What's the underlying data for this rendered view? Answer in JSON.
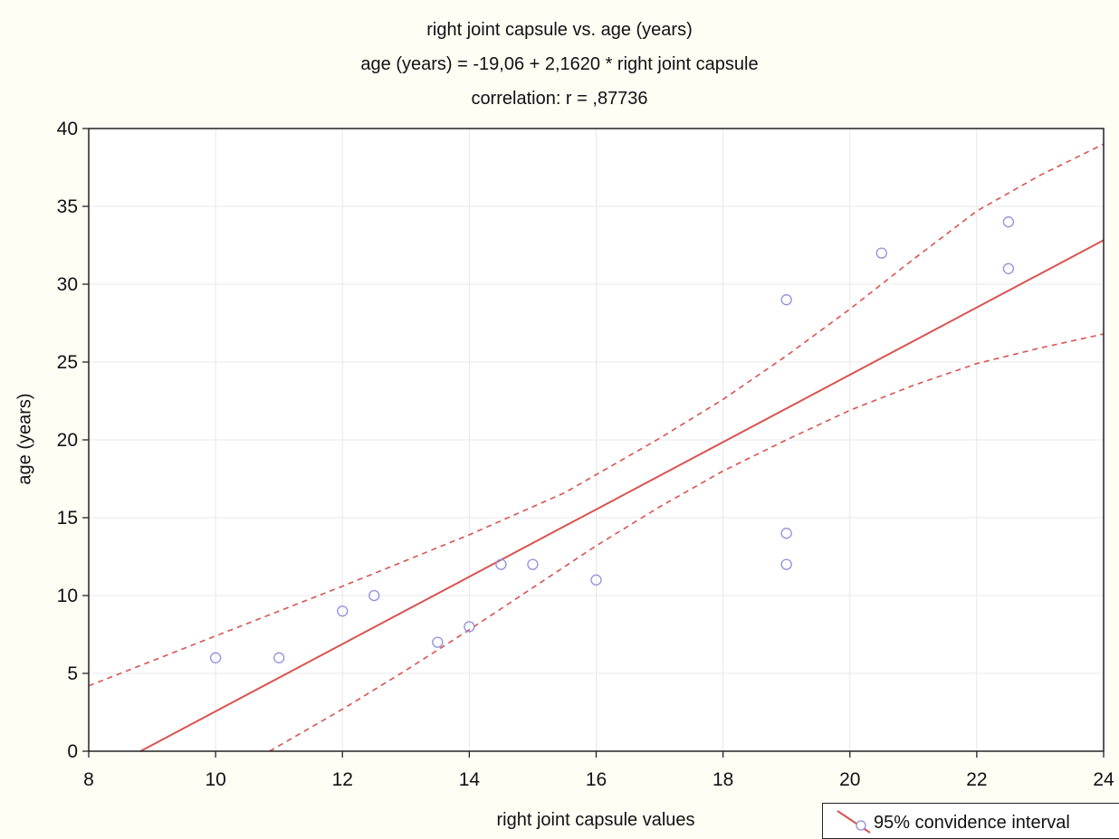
{
  "chart_data": {
    "type": "scatter",
    "title": "right joint capsule  vs. age (years)",
    "subtitle": "age (years) = -19,06 + 2,1620 * right joint capsule",
    "correlation": "correlation: r =   ,87736",
    "xlabel": "right joint capsule values",
    "ylabel": "age (years)",
    "xlim": [
      8,
      24
    ],
    "ylim": [
      0,
      40
    ],
    "xticks": [
      8,
      10,
      12,
      14,
      16,
      18,
      20,
      22,
      24
    ],
    "yticks": [
      0,
      5,
      10,
      15,
      20,
      25,
      30,
      35,
      40
    ],
    "grid": true,
    "legend_position": "bottom-right",
    "legend_label": "95% convidence interval",
    "points": [
      {
        "x": 10,
        "y": 6
      },
      {
        "x": 11,
        "y": 6
      },
      {
        "x": 12,
        "y": 9
      },
      {
        "x": 12.5,
        "y": 10
      },
      {
        "x": 13.5,
        "y": 7
      },
      {
        "x": 14,
        "y": 8
      },
      {
        "x": 14.5,
        "y": 12
      },
      {
        "x": 15,
        "y": 12
      },
      {
        "x": 16,
        "y": 11
      },
      {
        "x": 19,
        "y": 29
      },
      {
        "x": 19,
        "y": 14
      },
      {
        "x": 19,
        "y": 12
      },
      {
        "x": 20.5,
        "y": 32
      },
      {
        "x": 22.5,
        "y": 34
      },
      {
        "x": 22.5,
        "y": 31
      }
    ],
    "regression": {
      "intercept": -19.06,
      "slope": 2.162
    },
    "ci_upper": [
      {
        "x": 8,
        "y": 4.2
      },
      {
        "x": 10,
        "y": 7.4
      },
      {
        "x": 12,
        "y": 10.6
      },
      {
        "x": 14,
        "y": 13.9
      },
      {
        "x": 15.5,
        "y": 16.6
      },
      {
        "x": 17,
        "y": 20.1
      },
      {
        "x": 18,
        "y": 22.6
      },
      {
        "x": 19,
        "y": 25.4
      },
      {
        "x": 20,
        "y": 28.4
      },
      {
        "x": 21,
        "y": 31.6
      },
      {
        "x": 22,
        "y": 34.7
      },
      {
        "x": 23,
        "y": 37
      },
      {
        "x": 24,
        "y": 39
      }
    ],
    "ci_lower": [
      {
        "x": 10.85,
        "y": 0
      },
      {
        "x": 12,
        "y": 2.7
      },
      {
        "x": 13,
        "y": 5.2
      },
      {
        "x": 14,
        "y": 7.8
      },
      {
        "x": 15,
        "y": 10.5
      },
      {
        "x": 16,
        "y": 13.2
      },
      {
        "x": 17,
        "y": 15.7
      },
      {
        "x": 18,
        "y": 18
      },
      {
        "x": 19,
        "y": 20
      },
      {
        "x": 20,
        "y": 21.9
      },
      {
        "x": 21,
        "y": 23.5
      },
      {
        "x": 22,
        "y": 24.9
      },
      {
        "x": 23,
        "y": 25.9
      },
      {
        "x": 24,
        "y": 26.8
      }
    ],
    "colors": {
      "regression": "#d9534f",
      "ci": "#d9534f",
      "points": "#8f8fe0",
      "grid": "#e8e8e8",
      "axis": "#222222"
    }
  }
}
